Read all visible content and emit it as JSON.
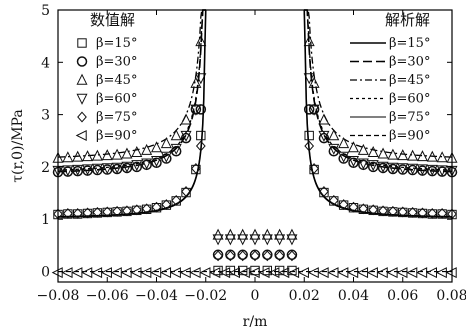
{
  "chart_data": {
    "type": "line",
    "xlabel": "r/m",
    "ylabel": "τ(r,0)/MPa",
    "xlim": [
      -0.08,
      0.08
    ],
    "ylim": [
      -0.2,
      5.0
    ],
    "xticks": [
      -0.08,
      -0.06,
      -0.04,
      -0.02,
      0,
      0.02,
      0.04,
      0.06,
      0.08
    ],
    "yticks": [
      0,
      1,
      2,
      3,
      4,
      5
    ],
    "xtick_labels": [
      "−0.08",
      "−0.06",
      "−0.04",
      "−0.02",
      "0",
      "0.02",
      "0.04",
      "0.06",
      "0.08"
    ],
    "ytick_labels": [
      "0",
      "1",
      "2",
      "3",
      "4",
      "5"
    ],
    "legend_numerical_title": "数值解",
    "legend_analytical_title": "解析解",
    "series": [
      {
        "name": "β=15°",
        "marker": "square",
        "linestyle": "solid",
        "c": 1.01,
        "r0": 0.0198,
        "num_outside_x": [
          -0.08,
          -0.076,
          -0.072,
          -0.068,
          -0.064,
          -0.06,
          -0.056,
          -0.052,
          -0.048,
          -0.044,
          -0.04,
          -0.036,
          -0.032,
          -0.028,
          -0.024,
          -0.022,
          0.022,
          0.024,
          0.028,
          0.032,
          0.036,
          0.04,
          0.044,
          0.048,
          0.052,
          0.056,
          0.06,
          0.064,
          0.068,
          0.072,
          0.076,
          0.08
        ],
        "num_outside_y": [
          1.09,
          1.1,
          1.1,
          1.11,
          1.12,
          1.13,
          1.14,
          1.15,
          1.17,
          1.19,
          1.22,
          1.27,
          1.35,
          1.51,
          1.95,
          2.6,
          2.6,
          1.95,
          1.51,
          1.35,
          1.27,
          1.22,
          1.19,
          1.17,
          1.15,
          1.14,
          1.13,
          1.12,
          1.11,
          1.1,
          1.1,
          1.09
        ],
        "num_inside_x": [
          -0.015,
          -0.01,
          -0.005,
          0,
          0.005,
          0.01,
          0.015
        ],
        "num_inside_y": [
          0.02,
          0.02,
          0.02,
          0.02,
          0.02,
          0.02,
          0.02
        ]
      },
      {
        "name": "β=30°",
        "marker": "circle",
        "linestyle": "dash",
        "c": 1.85,
        "r0": 0.0198,
        "num_outside_x": [
          -0.08,
          -0.076,
          -0.072,
          -0.068,
          -0.064,
          -0.06,
          -0.056,
          -0.052,
          -0.048,
          -0.044,
          -0.04,
          -0.036,
          -0.032,
          -0.028,
          -0.024,
          -0.022,
          0.022,
          0.024,
          0.028,
          0.032,
          0.036,
          0.04,
          0.044,
          0.048,
          0.052,
          0.056,
          0.06,
          0.064,
          0.068,
          0.072,
          0.076,
          0.08
        ],
        "num_outside_y": [
          1.9,
          1.91,
          1.92,
          1.93,
          1.94,
          1.95,
          1.96,
          1.98,
          2.0,
          2.04,
          2.08,
          2.16,
          2.3,
          2.55,
          3.1,
          3.1,
          3.1,
          3.1,
          2.55,
          2.3,
          2.16,
          2.08,
          2.04,
          2.0,
          1.98,
          1.96,
          1.95,
          1.94,
          1.93,
          1.92,
          1.91,
          1.9
        ],
        "num_inside_x": [
          -0.015,
          -0.01,
          -0.005,
          0,
          0.005,
          0.01,
          0.015
        ],
        "num_inside_y": [
          0.32,
          0.32,
          0.32,
          0.32,
          0.32,
          0.32,
          0.32
        ]
      },
      {
        "name": "β=45°",
        "marker": "triangle-up",
        "linestyle": "dashdot",
        "c": 2.12,
        "r0": 0.0198,
        "num_outside_x": [
          -0.08,
          -0.076,
          -0.072,
          -0.068,
          -0.064,
          -0.06,
          -0.056,
          -0.052,
          -0.048,
          -0.044,
          -0.04,
          -0.036,
          -0.032,
          -0.028,
          -0.024,
          -0.022,
          0.022,
          0.024,
          0.028,
          0.032,
          0.036,
          0.04,
          0.044,
          0.048,
          0.052,
          0.056,
          0.06,
          0.064,
          0.068,
          0.072,
          0.076,
          0.08
        ],
        "num_outside_y": [
          2.17,
          2.18,
          2.19,
          2.2,
          2.21,
          2.22,
          2.23,
          2.25,
          2.28,
          2.32,
          2.37,
          2.45,
          2.6,
          2.9,
          3.6,
          4.4,
          4.4,
          3.6,
          2.9,
          2.6,
          2.45,
          2.37,
          2.32,
          2.28,
          2.25,
          2.23,
          2.22,
          2.21,
          2.2,
          2.19,
          2.18,
          2.17
        ],
        "num_inside_x": [
          -0.015,
          -0.01,
          -0.005,
          0,
          0.005,
          0.01,
          0.015
        ],
        "num_inside_y": [
          0.7,
          0.7,
          0.7,
          0.7,
          0.7,
          0.7,
          0.7
        ]
      },
      {
        "name": "β=60°",
        "marker": "triangle-down",
        "linestyle": "dotted",
        "c": 1.88,
        "r0": 0.0198,
        "num_outside_x": [
          -0.08,
          -0.076,
          -0.072,
          -0.068,
          -0.064,
          -0.06,
          -0.056,
          -0.052,
          -0.048,
          -0.044,
          -0.04,
          -0.036,
          -0.032,
          -0.028,
          -0.024,
          -0.022,
          0.022,
          0.024,
          0.028,
          0.032,
          0.036,
          0.04,
          0.044,
          0.048,
          0.052,
          0.056,
          0.06,
          0.064,
          0.068,
          0.072,
          0.076,
          0.08
        ],
        "num_outside_y": [
          1.93,
          1.94,
          1.95,
          1.96,
          1.97,
          1.98,
          1.99,
          2.01,
          2.04,
          2.07,
          2.12,
          2.2,
          2.35,
          2.6,
          3.1,
          3.7,
          3.7,
          3.1,
          2.6,
          2.35,
          2.2,
          2.12,
          2.07,
          2.04,
          2.01,
          1.99,
          1.98,
          1.97,
          1.96,
          1.95,
          1.94,
          1.93
        ],
        "num_inside_x": [
          -0.015,
          -0.01,
          -0.005,
          0,
          0.005,
          0.01,
          0.015
        ],
        "num_inside_y": [
          0.62,
          0.62,
          0.62,
          0.62,
          0.62,
          0.62,
          0.62
        ]
      },
      {
        "name": "β=75°",
        "marker": "diamond",
        "linestyle": "solid-thin",
        "c": 1.02,
        "r0": 0.0198,
        "num_outside_x": [
          -0.08,
          -0.076,
          -0.072,
          -0.068,
          -0.064,
          -0.06,
          -0.056,
          -0.052,
          -0.048,
          -0.044,
          -0.04,
          -0.036,
          -0.032,
          -0.028,
          -0.024,
          -0.022,
          0.022,
          0.024,
          0.028,
          0.032,
          0.036,
          0.04,
          0.044,
          0.048,
          0.052,
          0.056,
          0.06,
          0.064,
          0.068,
          0.072,
          0.076,
          0.08
        ],
        "num_outside_y": [
          1.1,
          1.11,
          1.11,
          1.12,
          1.13,
          1.14,
          1.15,
          1.16,
          1.18,
          1.2,
          1.23,
          1.28,
          1.36,
          1.53,
          1.97,
          2.4,
          2.4,
          1.97,
          1.53,
          1.36,
          1.28,
          1.23,
          1.2,
          1.18,
          1.16,
          1.15,
          1.14,
          1.13,
          1.12,
          1.11,
          1.11,
          1.1
        ],
        "num_inside_x": [
          -0.015,
          -0.01,
          -0.005,
          0,
          0.005,
          0.01,
          0.015
        ],
        "num_inside_y": [
          0.3,
          0.3,
          0.3,
          0.3,
          0.3,
          0.3,
          0.3
        ]
      },
      {
        "name": "β=90°",
        "marker": "triangle-left",
        "linestyle": "dash-small",
        "c": 0,
        "r0": 0.0198,
        "num_outside_x": [
          -0.08,
          -0.076,
          -0.072,
          -0.068,
          -0.064,
          -0.06,
          -0.056,
          -0.052,
          -0.048,
          -0.044,
          -0.04,
          -0.036,
          -0.032,
          -0.028,
          -0.024,
          -0.02,
          -0.016,
          -0.012,
          -0.008,
          -0.004,
          0,
          0.004,
          0.008,
          0.012,
          0.016,
          0.02,
          0.024,
          0.028,
          0.032,
          0.036,
          0.04,
          0.044,
          0.048,
          0.052,
          0.056,
          0.06,
          0.064,
          0.068,
          0.072,
          0.076,
          0.08
        ],
        "num_outside_y": [
          -0.02,
          -0.02,
          -0.02,
          -0.02,
          -0.02,
          -0.02,
          -0.02,
          -0.02,
          -0.02,
          -0.02,
          -0.02,
          -0.02,
          -0.02,
          -0.02,
          -0.02,
          -0.02,
          -0.02,
          -0.02,
          -0.02,
          -0.02,
          -0.02,
          -0.02,
          -0.02,
          -0.02,
          -0.02,
          -0.02,
          -0.02,
          -0.02,
          -0.02,
          -0.02,
          -0.02,
          -0.02,
          -0.02,
          -0.02,
          -0.02,
          -0.02,
          -0.02,
          -0.02,
          -0.02,
          -0.02,
          -0.02
        ],
        "num_inside_x": [],
        "num_inside_y": []
      }
    ]
  }
}
